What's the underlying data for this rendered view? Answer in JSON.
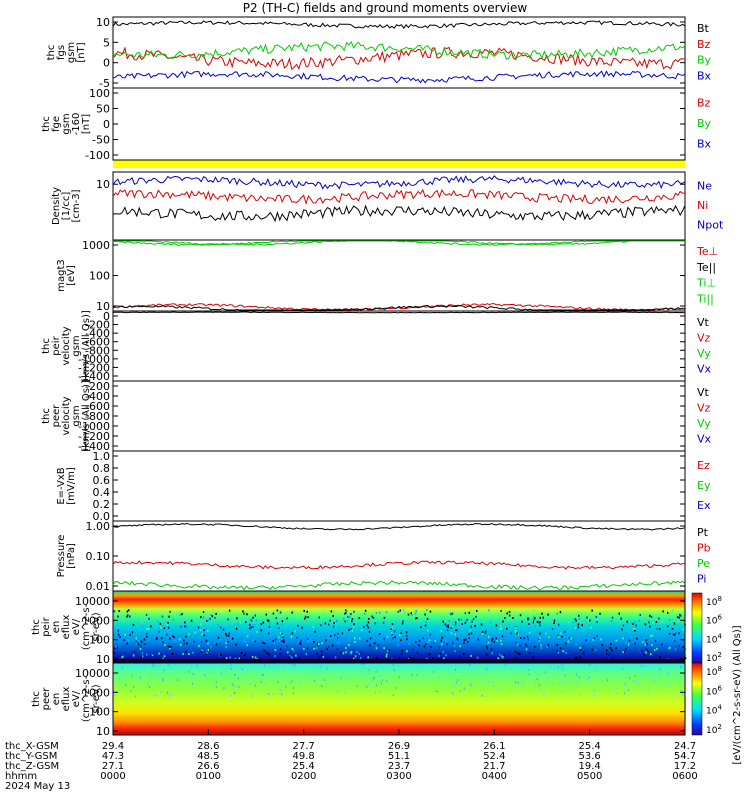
{
  "chart_data": {
    "type": "line",
    "title": "P2 (TH-C) fields and ground moments overview",
    "panels": [
      {
        "id": "fgs",
        "ylabel_lines": [
          "thc",
          "fgs",
          "gsm",
          "[nT]"
        ],
        "yticks": [
          "10",
          "5",
          "0",
          "-5"
        ],
        "ylim": [
          -8,
          11
        ],
        "series": [
          {
            "name": "Bt",
            "color": "#000000",
            "level": 9,
            "noise": 0.5
          },
          {
            "name": "Bz",
            "color": "#dd0000",
            "level": 0,
            "noise": 1.5
          },
          {
            "name": "By",
            "color": "#00cc00",
            "level": 2,
            "noise": 1.2
          },
          {
            "name": "Bx",
            "color": "#0000cc",
            "level": -5,
            "noise": 0.8
          }
        ]
      },
      {
        "id": "fge",
        "ylabel_lines": [
          "thc",
          "fge",
          "gsm",
          "-160",
          "[nT]"
        ],
        "yticks": [
          "100",
          "50",
          "0",
          "-50",
          "-100"
        ],
        "ylim": [
          -130,
          110
        ],
        "series": [
          {
            "name": "Bz",
            "color": "#dd0000"
          },
          {
            "name": "By",
            "color": "#00cc00"
          },
          {
            "name": "Bx",
            "color": "#0000cc"
          }
        ]
      },
      {
        "id": "density",
        "ylabel_lines": [
          "Density",
          "[1/cc]",
          "[cm-3]"
        ],
        "yticks": [
          "10"
        ],
        "ylim": [
          0.1,
          20
        ],
        "log": true,
        "series": [
          {
            "name": "Ne",
            "color": "#0000cc",
            "level": 9,
            "noise": 0.08
          },
          {
            "name": "Ni",
            "color": "#dd0000",
            "level": 3,
            "noise": 0.1
          },
          {
            "name": "Npot",
            "color": "#000000",
            "level": 0.8,
            "noise": 0.12
          }
        ],
        "legend_extra": [
          {
            "name": "Npot",
            "color": "#0000cc"
          }
        ]
      },
      {
        "id": "temp",
        "ylabel_lines": [
          "magt3",
          "[eV]"
        ],
        "yticks": [
          "1000",
          "100",
          "10"
        ],
        "ylim": [
          5,
          3000
        ],
        "log": true,
        "series": [
          {
            "name": "Te⊥",
            "color": "#dd0000",
            "level": 7,
            "noise": 0.03
          },
          {
            "name": "Te||",
            "color": "#000000",
            "level": 6,
            "noise": 0.03
          },
          {
            "name": "Ti⊥",
            "color": "#00cc00",
            "level": 2500,
            "noise": 0.02
          },
          {
            "name": "Ti||",
            "color": "#00cc00",
            "level": 2500,
            "noise": 0.02
          }
        ]
      },
      {
        "id": "peir_v",
        "ylabel_lines": [
          "thc",
          "peir",
          "velocity",
          "gsm",
          "[km/s (All Qs)]"
        ],
        "yticks": [
          "0",
          "-200",
          "-400",
          "-600",
          "-800",
          "-1000",
          "-1200",
          "-1400"
        ],
        "ylim": [
          -1450,
          30
        ],
        "series": [
          {
            "name": "Vt",
            "color": "#000000",
            "level": 0,
            "noise": 5
          },
          {
            "name": "Vz",
            "color": "#dd0000"
          },
          {
            "name": "Vy",
            "color": "#00cc00"
          },
          {
            "name": "Vx",
            "color": "#0000cc"
          }
        ]
      },
      {
        "id": "peer_v",
        "ylabel_lines": [
          "thc",
          "peer",
          "velocity",
          "gsm",
          "[km/s (All Qs)]"
        ],
        "yticks": [
          "-200",
          "-400",
          "-600",
          "-800",
          "-1000",
          "-1200",
          "-1400"
        ],
        "ylim": [
          -1450,
          -100
        ],
        "series": [
          {
            "name": "Vt",
            "color": "#000000"
          },
          {
            "name": "Vz",
            "color": "#dd0000"
          },
          {
            "name": "Vy",
            "color": "#00cc00"
          },
          {
            "name": "Vx",
            "color": "#0000cc"
          }
        ]
      },
      {
        "id": "efield",
        "ylabel_lines": [
          "E=-VxB",
          "[mV/m]"
        ],
        "yticks": [
          "1.0",
          "0.8",
          "0.6",
          "0.4",
          "0.2",
          "0.0"
        ],
        "ylim": [
          0,
          1.0
        ],
        "series": [
          {
            "name": "Ez",
            "color": "#dd0000"
          },
          {
            "name": "Ey",
            "color": "#00cc00"
          },
          {
            "name": "Ex",
            "color": "#0000cc"
          }
        ]
      },
      {
        "id": "pressure",
        "ylabel_lines": [
          "Pressure",
          "[nPa]"
        ],
        "yticks": [
          "1.00",
          "0.10",
          "0.01"
        ],
        "ylim": [
          0.003,
          1.5
        ],
        "log": true,
        "series": [
          {
            "name": "Pt",
            "color": "#000000",
            "level": 0.9,
            "noise": 0.02
          },
          {
            "name": "Pb",
            "color": "#dd0000",
            "level": 0.03,
            "noise": 0.04
          },
          {
            "name": "Pe",
            "color": "#00cc00",
            "level": 0.005,
            "noise": 0.05
          },
          {
            "name": "Pi",
            "color": "#0000cc"
          }
        ]
      },
      {
        "id": "peir_en",
        "ylabel_lines": [
          "thc",
          "peir",
          "en",
          "eflux",
          "eV/",
          "(cm^2-s-",
          "sr-eV)"
        ],
        "yticks": [
          "10000",
          "1000",
          "100",
          "10"
        ],
        "spectrogram": true
      },
      {
        "id": "peer_en",
        "ylabel_lines": [
          "thc",
          "peer",
          "en",
          "eflux",
          "eV/",
          "(cm^2-s-",
          "sr-eV)"
        ],
        "yticks": [
          "10000",
          "1000",
          "100",
          "10"
        ],
        "spectrogram": true
      }
    ],
    "colorbar": {
      "ticks": [
        "10^8",
        "10^6",
        "10^4",
        "10^2",
        "10^8",
        "10^6",
        "10^4",
        "10^2"
      ],
      "label": "[eV/(cm^2-s-sr-eV) (All Qs)]"
    },
    "xaxis": {
      "rows": [
        {
          "label": "thc_X-GSM",
          "values": [
            "29.4",
            "28.6",
            "27.7",
            "26.9",
            "26.1",
            "25.4",
            "24.7"
          ]
        },
        {
          "label": "thc_Y-GSM",
          "values": [
            "47.3",
            "48.5",
            "49.8",
            "51.1",
            "52.4",
            "53.6",
            "54.7"
          ]
        },
        {
          "label": "thc_Z-GSM",
          "values": [
            "27.1",
            "26.6",
            "25.4",
            "23.7",
            "21.7",
            "19.4",
            "17.2"
          ]
        },
        {
          "label": "hhmm",
          "values": [
            "0000",
            "0100",
            "0200",
            "0300",
            "0400",
            "0500",
            "0600"
          ]
        }
      ],
      "date": "2024 May 13"
    }
  }
}
